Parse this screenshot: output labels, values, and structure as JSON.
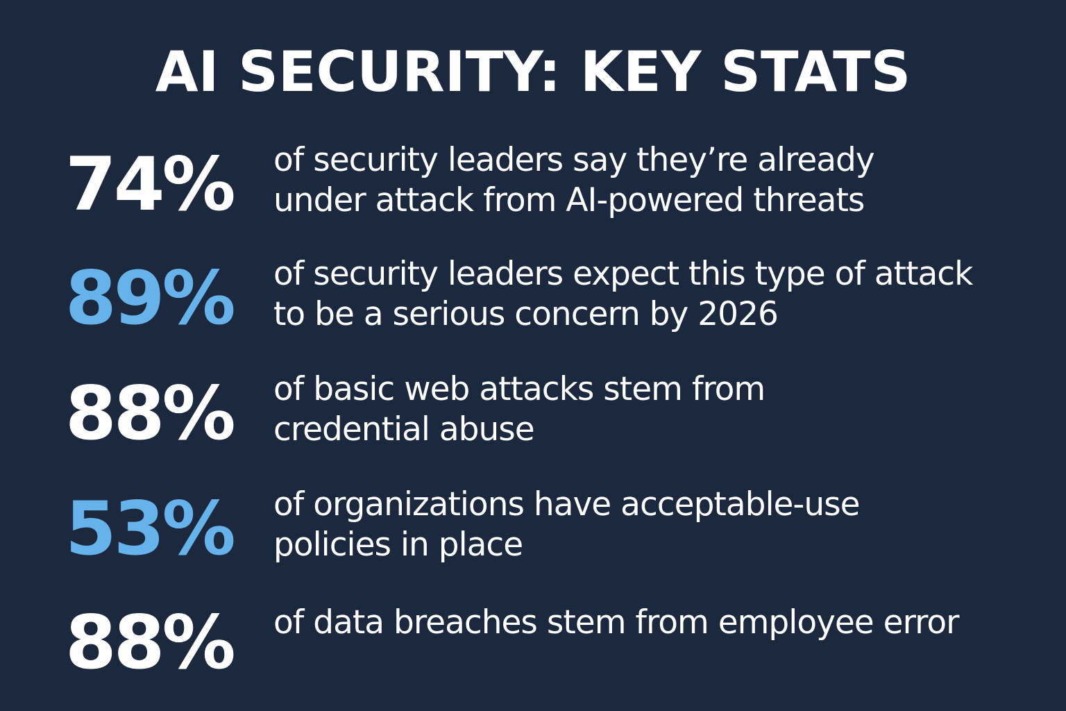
{
  "title": "AI SECURITY: KEY STATS",
  "colors": {
    "background": "#1b283d",
    "primary_text": "#ffffff",
    "accent_blue": "#66b2ea"
  },
  "stats": [
    {
      "value": "74%",
      "color": "#ffffff",
      "lines": [
        "of security leaders say they’re already",
        "under attack from AI-powered threats"
      ]
    },
    {
      "value": "89%",
      "color": "#66b2ea",
      "lines": [
        "of security leaders expect this type of attack",
        "to be a serious concern by 2026"
      ]
    },
    {
      "value": "88%",
      "color": "#ffffff",
      "lines": [
        "of basic web attacks stem from",
        "credential abuse"
      ]
    },
    {
      "value": "53%",
      "color": "#66b2ea",
      "lines": [
        "of organizations have acceptable-use",
        "policies in place"
      ]
    },
    {
      "value": "88%",
      "color": "#ffffff",
      "lines": [
        "of data breaches stem from employee error"
      ]
    }
  ]
}
